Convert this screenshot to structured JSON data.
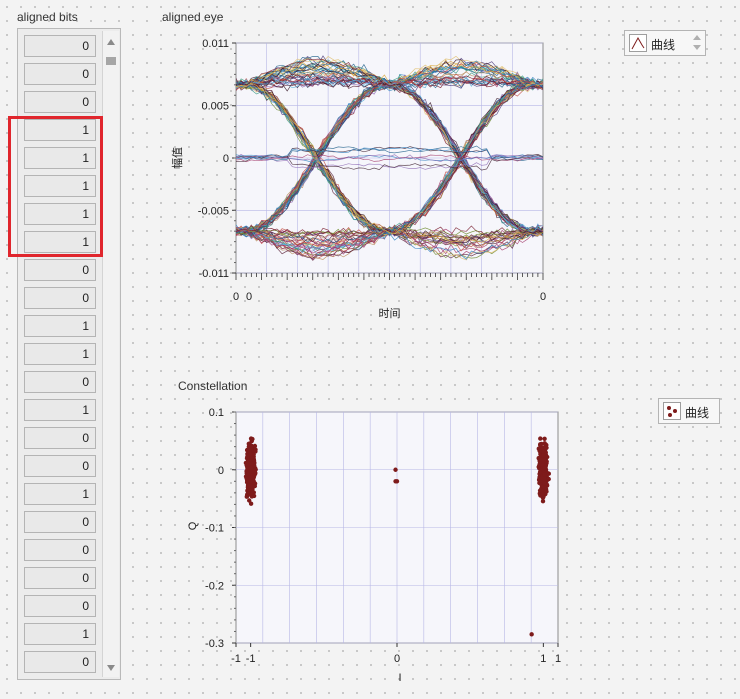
{
  "aligned_bits": {
    "label": "aligned bits",
    "values": [
      "0",
      "0",
      "0",
      "1",
      "1",
      "1",
      "1",
      "1",
      "0",
      "0",
      "1",
      "1",
      "0",
      "1",
      "0",
      "0",
      "1",
      "0",
      "0",
      "0",
      "0",
      "1",
      "0"
    ]
  },
  "eye": {
    "label": "aligned eye",
    "legend_label": "曲线",
    "xlabel": "时间",
    "ylabel": "幅值",
    "yticks": [
      "0.011",
      "0.005",
      "0",
      "-0.005",
      "-0.011"
    ],
    "xticks": [
      "0",
      "0",
      "0"
    ]
  },
  "constellation": {
    "label": "Constellation",
    "legend_label": "曲线",
    "xlabel": "I",
    "ylabel": "Q",
    "yticks": [
      "0.1",
      "0",
      "-0.1",
      "-0.2",
      "-0.3"
    ],
    "xticks": [
      "-1",
      "-1",
      "0",
      "1",
      "1"
    ]
  },
  "colors": {
    "highlight": "#e0262d",
    "plot_bg": "#f6f6fb",
    "grid": "#b7b7e6",
    "constellation_points": "#7e1b1b"
  },
  "chart_data": [
    {
      "type": "line",
      "title": "aligned eye",
      "xlabel": "时间",
      "ylabel": "幅值",
      "ylim": [
        -0.011,
        0.011
      ],
      "grid": true,
      "legend": "top-right",
      "series": [
        {
          "name": "曲线",
          "description": "overlaid eye traces",
          "levels": [
            0.007,
            0.0,
            -0.007
          ],
          "peak": 0.0105
        }
      ]
    },
    {
      "type": "scatter",
      "title": "Constellation",
      "xlabel": "I",
      "ylabel": "Q",
      "xlim": [
        -1.1,
        1.1
      ],
      "ylim": [
        -0.3,
        0.1
      ],
      "grid": true,
      "legend": "top-right",
      "series": [
        {
          "name": "曲线",
          "clusters": [
            {
              "center": [
                -1.0,
                0.0
              ],
              "spread": [
                0.03,
                0.045
              ]
            },
            {
              "center": [
                1.0,
                0.0
              ],
              "spread": [
                0.03,
                0.045
              ]
            }
          ],
          "points": [
            [
              -0.01,
              0.0
            ],
            [
              -0.01,
              -0.02
            ],
            [
              0.0,
              -0.02
            ],
            [
              0.92,
              -0.285
            ]
          ]
        }
      ]
    }
  ]
}
